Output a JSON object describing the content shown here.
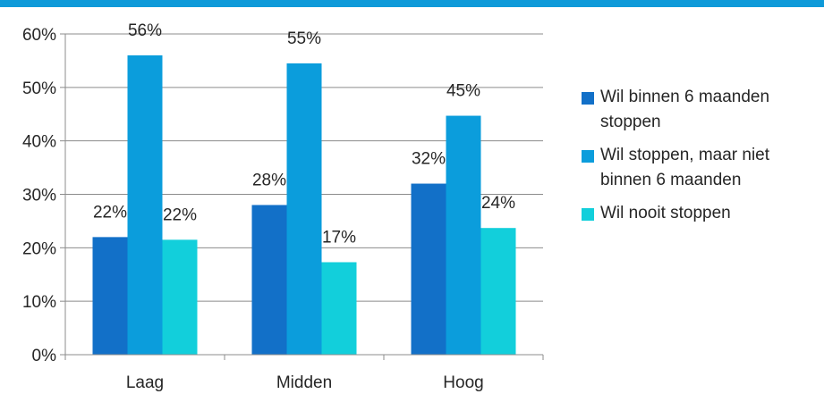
{
  "colors": {
    "top_band": "#0e9ad9"
  },
  "chart_data": {
    "type": "bar",
    "categories": [
      "Laag",
      "Midden",
      "Hoog"
    ],
    "series": [
      {
        "name": "Wil binnen 6 maanden stoppen",
        "values": [
          22,
          28,
          32
        ],
        "display_values": [
          22,
          28,
          32
        ],
        "color": "#1270c8"
      },
      {
        "name": "Wil stoppen, maar niet binnen 6 maanden",
        "values": [
          56,
          54.5,
          44.7
        ],
        "display_values": [
          56,
          55,
          45
        ],
        "color": "#0b9ddc"
      },
      {
        "name": "Wil  nooit stoppen",
        "values": [
          21.5,
          17.3,
          23.7
        ],
        "display_values": [
          22,
          17,
          24
        ],
        "color": "#12cfdb"
      }
    ],
    "ylim": [
      0,
      60
    ],
    "yticks": [
      0,
      10,
      20,
      30,
      40,
      50,
      60
    ],
    "value_suffix": "%",
    "grid": true,
    "legend_position": "right",
    "title": "",
    "xlabel": "",
    "ylabel": ""
  }
}
